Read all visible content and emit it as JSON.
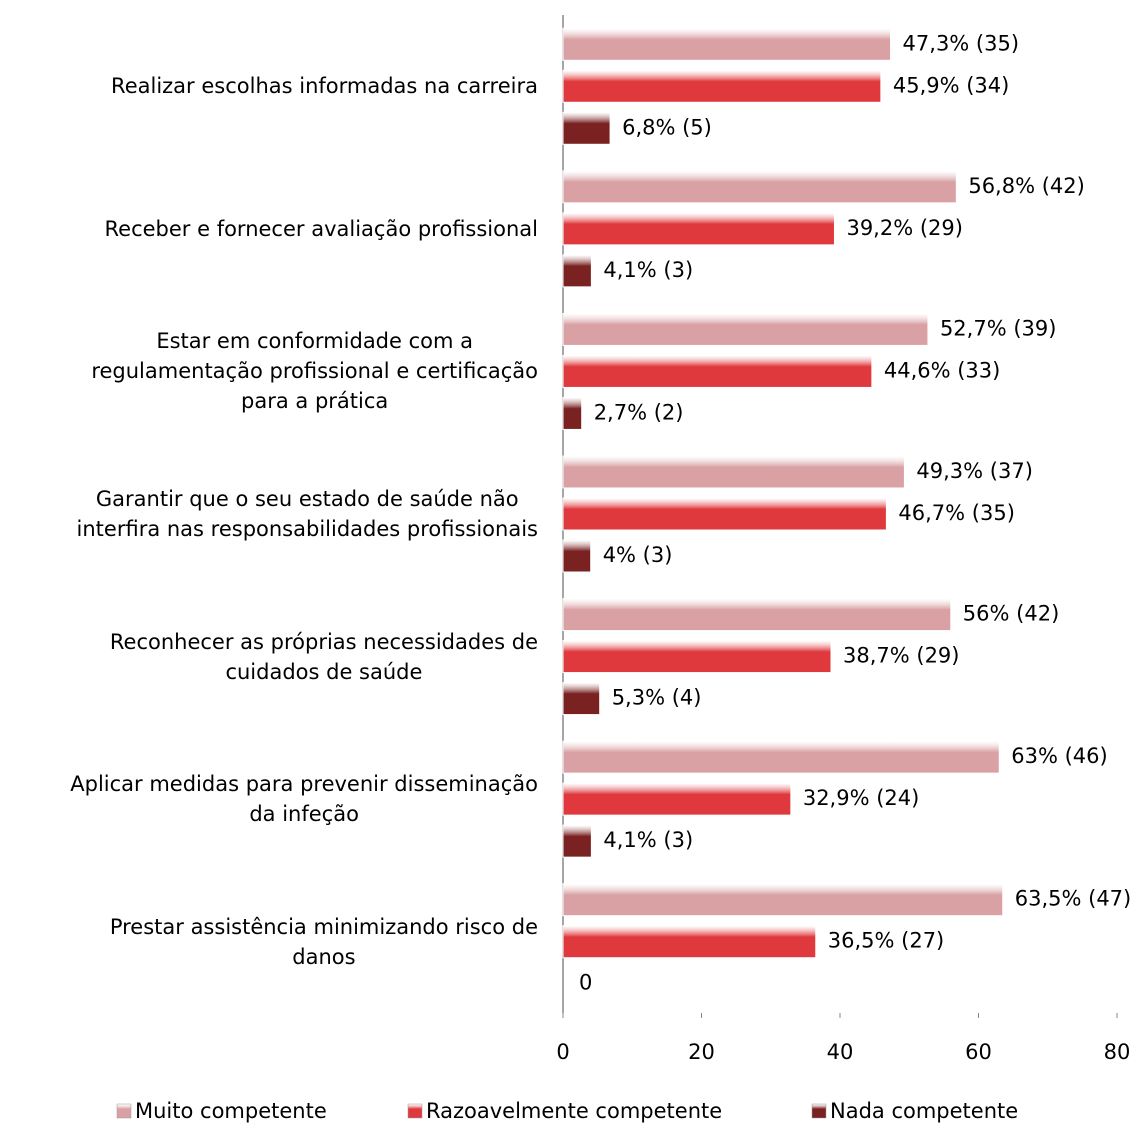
{
  "chart_data": {
    "type": "bar",
    "orientation": "horizontal",
    "categories": [
      "Realizar escolhas informadas na carreira",
      "Receber e fornecer avaliação profissional",
      "Estar em conformidade com a\nregulamentação profissional e certificação\npara a prática",
      "Garantir que o seu estado de saúde não\ninterfira nas responsabilidades profissionais",
      "Reconhecer as próprias necessidades de\ncuidados de saúde",
      "Aplicar medidas para prevenir disseminação\nda infeção",
      "Prestar assistência minimizando  risco de\ndanos"
    ],
    "series": [
      {
        "name": "Muito competente",
        "color": "#d9a1a4",
        "values": [
          47.3,
          56.8,
          52.7,
          49.3,
          56,
          63,
          63.5
        ],
        "value_labels": [
          "47,3% (35)",
          "56,8% (42)",
          "52,7% (39)",
          "49,3% (37)",
          "56% (42)",
          "63% (46)",
          "63,5% (47)"
        ]
      },
      {
        "name": "Razoavelmente competente",
        "color": "#e0393d",
        "values": [
          45.9,
          39.2,
          44.6,
          46.7,
          38.7,
          32.9,
          36.5
        ],
        "value_labels": [
          "45,9% (34)",
          "39,2% (29)",
          "44,6% (33)",
          "46,7% (35)",
          "38,7% (29)",
          "32,9% (24)",
          "36,5% (27)"
        ]
      },
      {
        "name": "Nada competente",
        "color": "#7a2222",
        "values": [
          6.8,
          4.1,
          2.7,
          4,
          5.3,
          4.1,
          0
        ],
        "value_labels": [
          "6,8% (5)",
          "4,1% (3)",
          "2,7% (2)",
          "4% (3)",
          "5,3% (4)",
          "4,1% (3)",
          "0"
        ]
      }
    ],
    "xlim": [
      0,
      80
    ],
    "xticks": [
      0,
      20,
      40,
      60,
      80
    ],
    "legend": "bottom"
  }
}
